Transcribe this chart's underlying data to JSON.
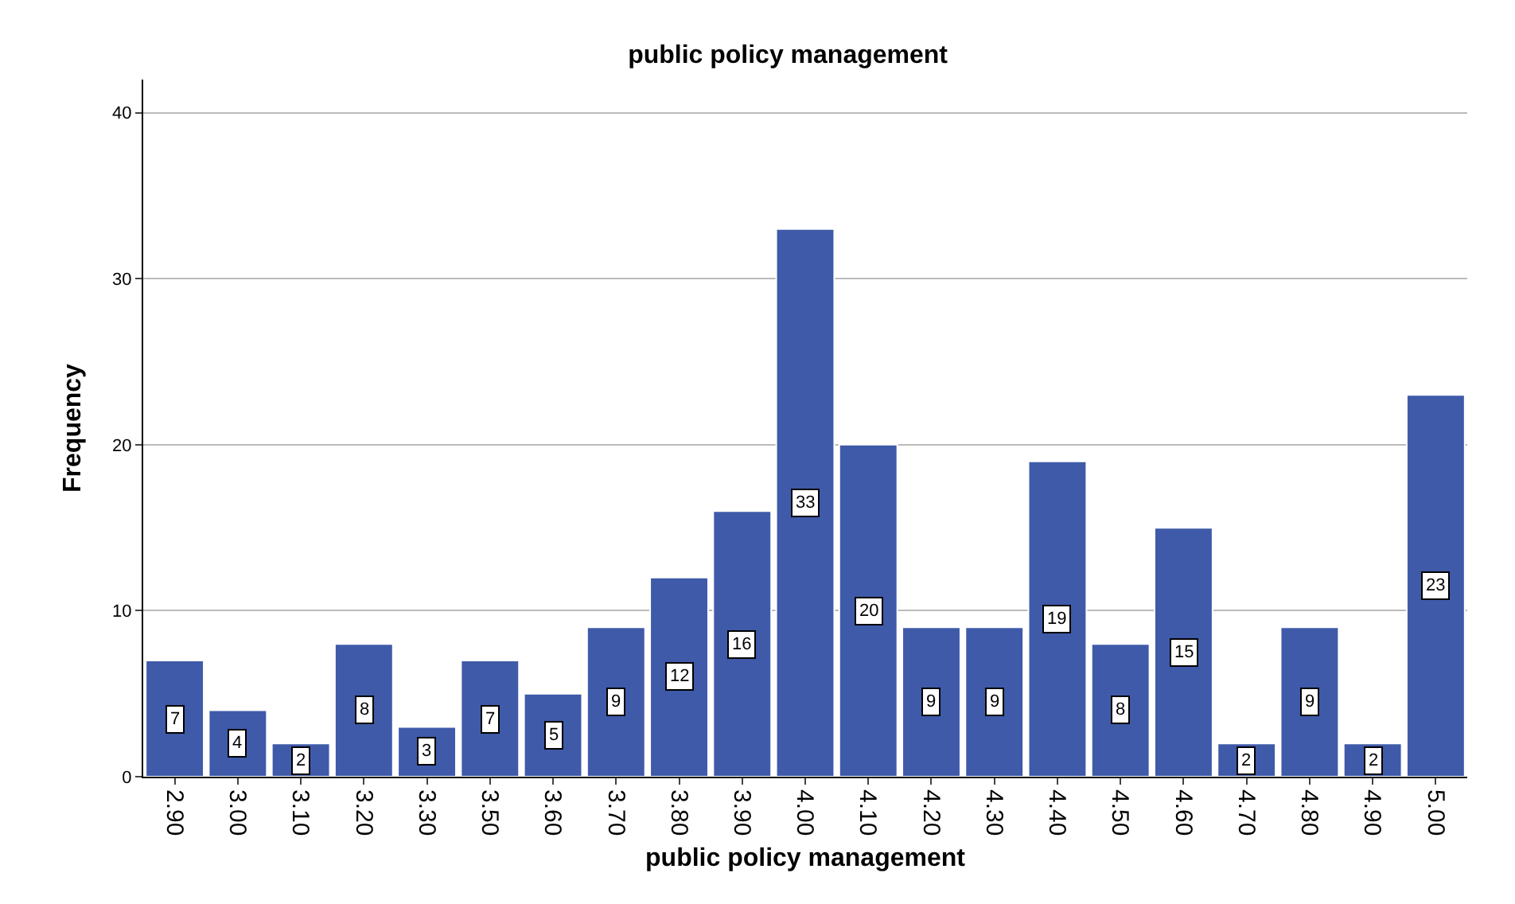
{
  "chart_data": {
    "type": "bar",
    "title": "public policy management",
    "xlabel": "public policy management",
    "ylabel": "Frequency",
    "categories": [
      "2.90",
      "3.00",
      "3.10",
      "3.20",
      "3.30",
      "3.50",
      "3.60",
      "3.70",
      "3.80",
      "3.90",
      "4.00",
      "4.10",
      "4.20",
      "4.30",
      "4.40",
      "4.50",
      "4.60",
      "4.70",
      "4.80",
      "4.90",
      "5.00"
    ],
    "values": [
      7,
      4,
      2,
      8,
      3,
      7,
      5,
      9,
      12,
      16,
      33,
      20,
      9,
      9,
      19,
      8,
      15,
      2,
      9,
      2,
      23
    ],
    "color": "#3f5aa8",
    "ylim": [
      0,
      42
    ],
    "yticks": [
      0,
      10,
      20,
      30,
      40
    ],
    "grid": "y",
    "data_labels": true
  }
}
